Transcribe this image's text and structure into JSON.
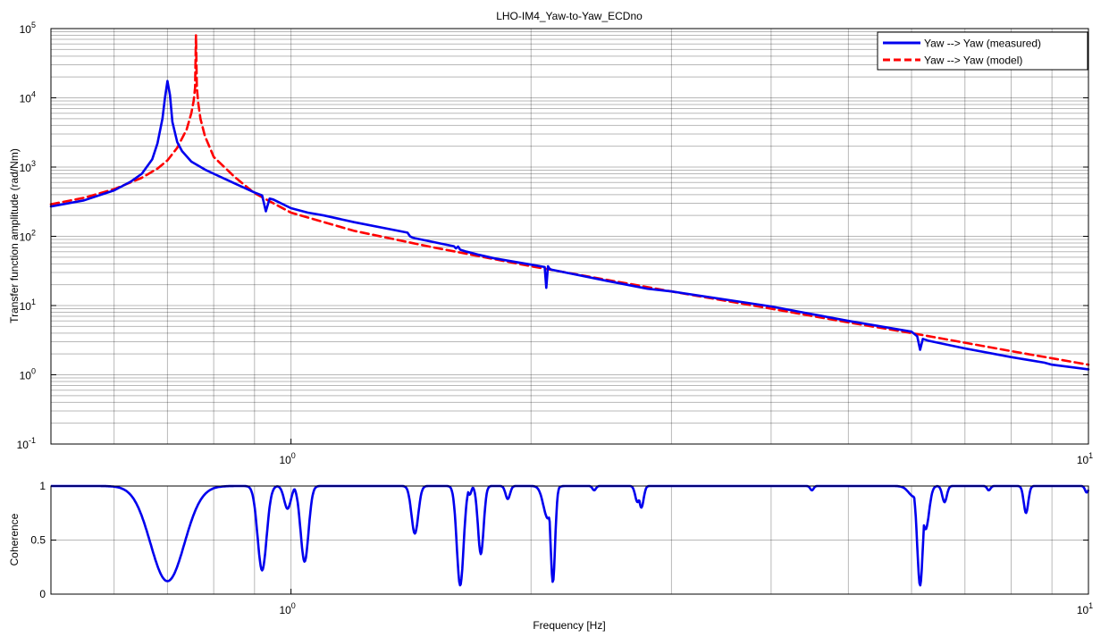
{
  "chart_data": [
    {
      "type": "line",
      "title": "LHO-IM4_Yaw-to-Yaw_ECDno",
      "xlabel": "",
      "ylabel": "Transfer function amplitude (rad/Nm)",
      "xscale": "log",
      "yscale": "log",
      "xlim": [
        0.5,
        10
      ],
      "ylim": [
        0.1,
        100000
      ],
      "grid": true,
      "legend_position": "top-right",
      "x_tick_labels": [
        {
          "base": "10",
          "exp": "0",
          "value": 1
        },
        {
          "base": "10",
          "exp": "1",
          "value": 10
        }
      ],
      "y_tick_labels": [
        {
          "base": "10",
          "exp": "-1",
          "value": 0.1
        },
        {
          "base": "10",
          "exp": "0",
          "value": 1
        },
        {
          "base": "10",
          "exp": "1",
          "value": 10
        },
        {
          "base": "10",
          "exp": "2",
          "value": 100
        },
        {
          "base": "10",
          "exp": "3",
          "value": 1000
        },
        {
          "base": "10",
          "exp": "4",
          "value": 10000
        },
        {
          "base": "10",
          "exp": "5",
          "value": 100000
        }
      ],
      "series": [
        {
          "name": "Yaw --> Yaw (measured)",
          "color": "#0000ee",
          "style": "solid",
          "x": [
            0.5,
            0.55,
            0.6,
            0.63,
            0.65,
            0.67,
            0.68,
            0.69,
            0.695,
            0.7,
            0.705,
            0.71,
            0.72,
            0.73,
            0.75,
            0.78,
            0.8,
            0.85,
            0.9,
            0.92,
            0.93,
            0.94,
            0.95,
            1.0,
            1.05,
            1.1,
            1.2,
            1.4,
            1.41,
            1.42,
            1.43,
            1.6,
            1.61,
            1.62,
            1.63,
            1.66,
            1.68,
            1.7,
            1.72,
            1.8,
            2.0,
            2.08,
            2.09,
            2.1,
            2.11,
            2.12,
            2.15,
            2.5,
            2.8,
            3.0,
            4.0,
            5.0,
            6.0,
            6.1,
            6.15,
            6.2,
            6.3,
            7.0,
            8.0,
            8.8,
            9.0,
            10.0
          ],
          "y": [
            270,
            330,
            460,
            620,
            800,
            1300,
            2200,
            5000,
            10000,
            17500,
            11000,
            4500,
            2300,
            1700,
            1200,
            920,
            800,
            580,
            430,
            390,
            230,
            350,
            340,
            255,
            220,
            200,
            160,
            113,
            100,
            96,
            94,
            72,
            67,
            71,
            64,
            60,
            58,
            56,
            54,
            48,
            39,
            36,
            18,
            37,
            34,
            33,
            32,
            22.5,
            17.5,
            16,
            9.7,
            6,
            4.2,
            3.6,
            2.3,
            3.3,
            3.1,
            2.4,
            1.8,
            1.5,
            1.4,
            1.2
          ]
        },
        {
          "name": "Yaw --> Yaw (model)",
          "color": "#ff0000",
          "style": "dashed",
          "x": [
            0.5,
            0.55,
            0.6,
            0.65,
            0.68,
            0.7,
            0.72,
            0.74,
            0.75,
            0.755,
            0.758,
            0.76,
            0.762,
            0.765,
            0.77,
            0.78,
            0.8,
            0.85,
            0.9,
            1.0,
            1.2,
            1.5,
            2.0,
            3.0,
            4.0,
            5.0,
            6.0,
            8.0,
            10.0
          ],
          "y": [
            290,
            360,
            480,
            700,
            950,
            1250,
            1900,
            3500,
            6000,
            9000,
            14000,
            80000,
            14000,
            8500,
            5000,
            2800,
            1400,
            720,
            420,
            220,
            120,
            70,
            37,
            16,
            9,
            5.7,
            4.0,
            2.2,
            1.4
          ]
        }
      ]
    },
    {
      "type": "line",
      "title": "",
      "xlabel": "Frequency [Hz]",
      "ylabel": "Coherence",
      "xscale": "log",
      "xlim": [
        0.5,
        10
      ],
      "ylim": [
        0,
        1
      ],
      "grid": true,
      "x_tick_labels": [
        {
          "base": "10",
          "exp": "0",
          "value": 1
        },
        {
          "base": "10",
          "exp": "1",
          "value": 10
        }
      ],
      "y_tick_labels": [
        "0",
        "0.5",
        "1"
      ],
      "y_ticks": [
        0,
        0.5,
        1
      ],
      "series": [
        {
          "color": "#0000ee",
          "style": "solid",
          "baseline": 1.0,
          "dips": [
            {
              "f": 0.7,
              "min": 0.12,
              "w": 0.03
            },
            {
              "f": 0.92,
              "min": 0.22,
              "w": 0.008
            },
            {
              "f": 0.99,
              "min": 0.79,
              "w": 0.006
            },
            {
              "f": 1.04,
              "min": 0.3,
              "w": 0.007
            },
            {
              "f": 1.43,
              "min": 0.56,
              "w": 0.006
            },
            {
              "f": 1.63,
              "min": 0.08,
              "w": 0.006
            },
            {
              "f": 1.675,
              "min": 0.92,
              "w": 0.003
            },
            {
              "f": 1.73,
              "min": 0.37,
              "w": 0.005
            },
            {
              "f": 1.87,
              "min": 0.88,
              "w": 0.004
            },
            {
              "f": 2.1,
              "min": 0.7,
              "w": 0.008
            },
            {
              "f": 2.13,
              "min": 0.11,
              "w": 0.004
            },
            {
              "f": 2.4,
              "min": 0.96,
              "w": 0.003
            },
            {
              "f": 2.72,
              "min": 0.85,
              "w": 0.004
            },
            {
              "f": 2.75,
              "min": 0.8,
              "w": 0.004
            },
            {
              "f": 4.5,
              "min": 0.96,
              "w": 0.003
            },
            {
              "f": 6.05,
              "min": 0.9,
              "w": 0.01
            },
            {
              "f": 6.15,
              "min": 0.08,
              "w": 0.005
            },
            {
              "f": 6.25,
              "min": 0.6,
              "w": 0.006
            },
            {
              "f": 6.6,
              "min": 0.85,
              "w": 0.004
            },
            {
              "f": 7.5,
              "min": 0.96,
              "w": 0.003
            },
            {
              "f": 8.35,
              "min": 0.75,
              "w": 0.004
            },
            {
              "f": 9.95,
              "min": 0.94,
              "w": 0.003
            }
          ]
        }
      ]
    }
  ]
}
